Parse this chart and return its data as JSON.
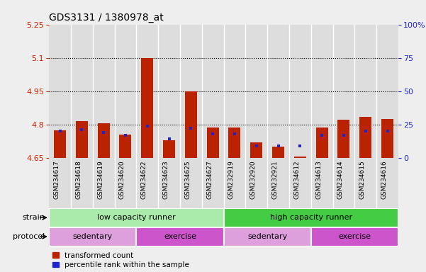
{
  "title": "GDS3131 / 1380978_at",
  "samples": [
    "GSM234617",
    "GSM234618",
    "GSM234619",
    "GSM234620",
    "GSM234622",
    "GSM234623",
    "GSM234625",
    "GSM234627",
    "GSM232919",
    "GSM232920",
    "GSM232921",
    "GSM234612",
    "GSM234613",
    "GSM234614",
    "GSM234615",
    "GSM234616"
  ],
  "red_values": [
    4.775,
    4.815,
    4.805,
    4.755,
    5.1,
    4.73,
    4.95,
    4.785,
    4.785,
    4.72,
    4.7,
    4.655,
    4.785,
    4.82,
    4.835,
    4.825
  ],
  "blue_pct": [
    20,
    21,
    19,
    17,
    24,
    14,
    22,
    18,
    18,
    9,
    9,
    9,
    17,
    17,
    20,
    20
  ],
  "ylim_left": [
    4.65,
    5.25
  ],
  "ylim_right": [
    0,
    100
  ],
  "yticks_left": [
    4.65,
    4.8,
    4.95,
    5.1,
    5.25
  ],
  "yticks_right": [
    0,
    25,
    50,
    75,
    100
  ],
  "ytick_labels_left": [
    "4.65",
    "4.8",
    "4.95",
    "5.1",
    "5.25"
  ],
  "ytick_labels_right": [
    "0",
    "25",
    "50",
    "75",
    "100%"
  ],
  "hlines": [
    4.8,
    4.95,
    5.1
  ],
  "bar_width": 0.55,
  "red_color": "#bb2200",
  "blue_color": "#2222cc",
  "strain_groups": [
    {
      "label": "low capacity runner",
      "start": 0,
      "end": 8,
      "color": "#aaeaaa"
    },
    {
      "label": "high capacity runner",
      "start": 8,
      "end": 16,
      "color": "#44cc44"
    }
  ],
  "protocol_groups": [
    {
      "label": "sedentary",
      "start": 0,
      "end": 4,
      "color": "#dda0dd"
    },
    {
      "label": "exercise",
      "start": 4,
      "end": 8,
      "color": "#cc55cc"
    },
    {
      "label": "sedentary",
      "start": 8,
      "end": 12,
      "color": "#dda0dd"
    },
    {
      "label": "exercise",
      "start": 12,
      "end": 16,
      "color": "#cc55cc"
    }
  ],
  "bg_color": "#eeeeee",
  "plot_bg": "#ffffff",
  "left_tick_color": "#cc2200",
  "right_tick_color": "#2222cc",
  "col_bg_color": "#dddddd"
}
